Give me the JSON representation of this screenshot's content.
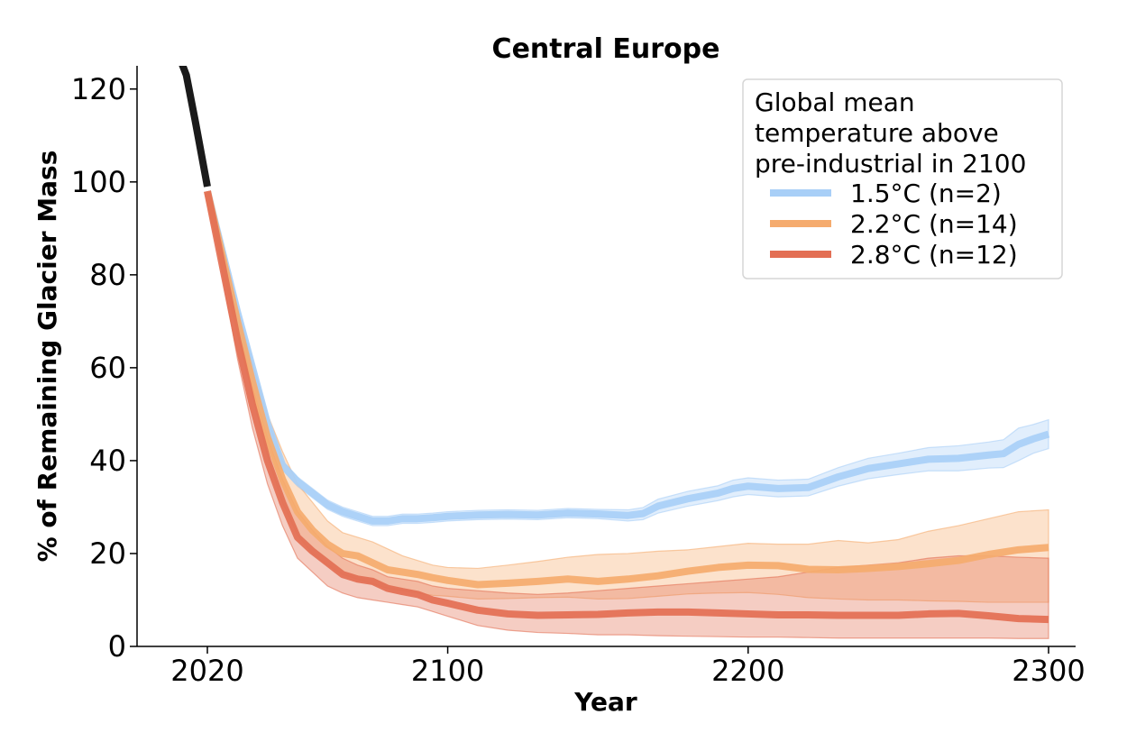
{
  "chart_data": {
    "type": "line",
    "title": "Central Europe",
    "xlabel": "Year",
    "ylabel": "% of Remaining Glacier Mass",
    "xlim": [
      1995,
      2309
    ],
    "ylim": [
      0,
      125
    ],
    "xticks": [
      "2020",
      "2100",
      "2200",
      "2300"
    ],
    "xtick_values": [
      2020,
      2100,
      2200,
      2300
    ],
    "yticks": [
      "0",
      "20",
      "40",
      "60",
      "80",
      "100",
      "120"
    ],
    "ytick_values": [
      0,
      20,
      40,
      60,
      80,
      100,
      120
    ],
    "grid": false,
    "legend": {
      "title_lines": [
        "Global mean",
        "temperature above",
        "pre-industrial in 2100"
      ],
      "position": "top-right"
    },
    "historical": {
      "color": "#1a1a1a",
      "x": [
        2010,
        2013,
        2016,
        2020
      ],
      "y": [
        128,
        123,
        113,
        99
      ]
    },
    "series": [
      {
        "name": "1.5°C (n=2)",
        "color": "#a8cff7",
        "x": [
          2020,
          2025,
          2030,
          2035,
          2040,
          2045,
          2050,
          2055,
          2060,
          2065,
          2070,
          2075,
          2080,
          2085,
          2090,
          2095,
          2100,
          2110,
          2120,
          2130,
          2140,
          2150,
          2160,
          2165,
          2170,
          2180,
          2190,
          2195,
          2200,
          2210,
          2220,
          2230,
          2240,
          2250,
          2260,
          2270,
          2280,
          2285,
          2290,
          2295,
          2300
        ],
        "y": [
          98,
          85,
          72,
          60,
          48,
          39,
          35.5,
          33,
          30.5,
          29,
          28,
          27,
          27,
          27.5,
          27.5,
          27.7,
          28,
          28.3,
          28.4,
          28.3,
          28.7,
          28.5,
          28.2,
          28.6,
          30.2,
          31.8,
          33,
          34,
          34.5,
          34,
          34.2,
          36.5,
          38.3,
          39.3,
          40.3,
          40.5,
          41.2,
          41.5,
          43.5,
          44.7,
          45.7
        ],
        "lower": [
          98,
          84,
          71,
          59,
          47,
          38,
          34.5,
          32,
          29.5,
          28,
          27,
          26,
          26,
          26.5,
          26.5,
          26.7,
          27,
          27.3,
          27.4,
          27.3,
          27.7,
          27.5,
          27,
          27.3,
          28.7,
          30.2,
          31.4,
          32.2,
          32.7,
          32.2,
          32.4,
          34.5,
          36.1,
          37,
          37.8,
          37.8,
          38.4,
          38.5,
          40,
          41.6,
          42.6
        ],
        "upper": [
          98,
          86,
          73,
          61,
          49,
          40,
          36.5,
          34,
          31.5,
          30,
          29,
          28,
          28,
          28.5,
          28.5,
          28.7,
          29,
          29.3,
          29.4,
          29.3,
          29.7,
          29.5,
          29.4,
          29.9,
          31.7,
          33.4,
          34.6,
          35.8,
          36.3,
          35.8,
          36,
          38.5,
          40.5,
          41.6,
          42.8,
          43.2,
          44,
          44.5,
          47,
          47.8,
          48.8
        ]
      },
      {
        "name": "2.2°C (n=14)",
        "color": "#f5ab6e",
        "x": [
          2020,
          2025,
          2030,
          2035,
          2040,
          2045,
          2050,
          2055,
          2060,
          2065,
          2070,
          2075,
          2080,
          2085,
          2090,
          2095,
          2100,
          2110,
          2120,
          2130,
          2140,
          2150,
          2160,
          2170,
          2180,
          2190,
          2200,
          2210,
          2220,
          2230,
          2240,
          2250,
          2260,
          2270,
          2280,
          2290,
          2300
        ],
        "y": [
          98,
          84,
          70,
          57,
          45,
          36,
          29,
          25,
          22,
          20,
          19.5,
          18,
          16.5,
          16,
          15.5,
          14.8,
          14.2,
          13.3,
          13.6,
          14,
          14.5,
          14,
          14.5,
          15.2,
          16.2,
          17,
          17.5,
          17.4,
          16.6,
          16.5,
          16.8,
          17.2,
          17.8,
          18.5,
          19.8,
          20.8,
          21.3
        ],
        "lower": [
          98,
          83,
          68,
          54,
          41,
          31,
          24,
          20,
          17.5,
          15.5,
          14.5,
          13.5,
          12.5,
          12,
          11.5,
          11,
          10.8,
          10.2,
          10.3,
          10.5,
          10.6,
          10.2,
          10.3,
          10.8,
          11.3,
          11.5,
          11.6,
          11.2,
          10.5,
          10.2,
          10,
          10,
          9.8,
          9.7,
          9.5,
          9.5,
          9.5
        ],
        "upper": [
          98,
          86,
          73,
          61,
          50,
          42,
          35,
          31,
          27,
          24.5,
          23.5,
          22.5,
          21,
          19.5,
          18.5,
          17.5,
          17,
          16.8,
          17.5,
          18.3,
          19.2,
          19.8,
          20,
          20.5,
          20.8,
          21.5,
          22.2,
          22,
          22,
          22.8,
          22.3,
          23,
          24.8,
          26,
          27.5,
          29,
          29.4
        ]
      },
      {
        "name": "2.8°C (n=12)",
        "color": "#e36f54",
        "x": [
          2020,
          2025,
          2030,
          2035,
          2040,
          2045,
          2050,
          2055,
          2060,
          2065,
          2070,
          2075,
          2080,
          2085,
          2090,
          2095,
          2100,
          2110,
          2120,
          2130,
          2140,
          2150,
          2160,
          2170,
          2180,
          2190,
          2200,
          2210,
          2220,
          2230,
          2240,
          2250,
          2260,
          2270,
          2280,
          2290,
          2300
        ],
        "y": [
          98,
          82,
          66,
          52,
          40,
          31,
          23.5,
          20.5,
          18,
          15.5,
          14.5,
          14,
          12.5,
          11.8,
          11.2,
          10,
          9.3,
          7.8,
          7,
          6.7,
          6.8,
          6.9,
          7.2,
          7.4,
          7.4,
          7.2,
          7,
          6.8,
          6.8,
          6.7,
          6.7,
          6.7,
          7,
          7.1,
          6.6,
          6,
          5.8
        ],
        "lower": [
          98,
          80,
          62,
          47,
          35,
          26,
          19,
          16,
          13,
          11.5,
          10.5,
          10,
          9.5,
          9,
          8.5,
          7.5,
          6.5,
          4.5,
          3.5,
          3,
          2.8,
          2.5,
          2.5,
          2.3,
          2.2,
          2.1,
          2,
          2,
          1.9,
          1.8,
          1.8,
          1.8,
          1.8,
          1.8,
          1.8,
          1.7,
          1.7
        ],
        "upper": [
          98,
          84,
          70,
          56,
          45,
          36,
          29,
          25,
          21.5,
          19,
          17.5,
          16.5,
          15,
          14.5,
          14,
          13,
          12.5,
          12,
          11.5,
          11.2,
          11.5,
          12,
          12.5,
          13,
          13.5,
          14,
          14.5,
          15,
          16,
          17,
          17.5,
          18,
          19,
          19.5,
          19.5,
          19.2,
          19
        ]
      }
    ]
  }
}
